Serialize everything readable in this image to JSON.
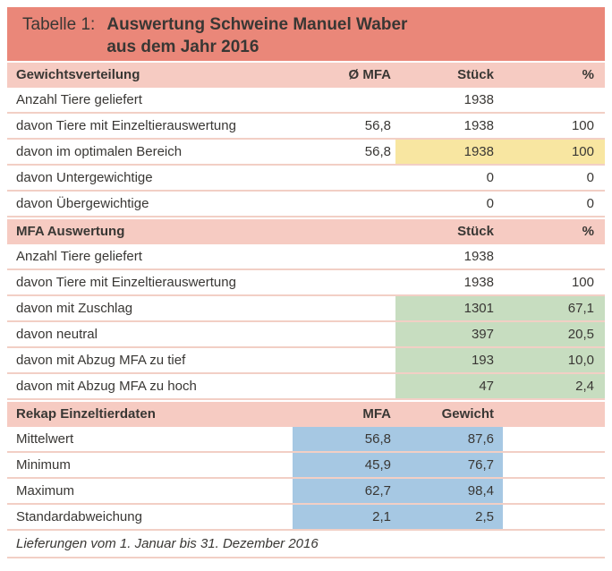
{
  "title": {
    "prefix": "Tabelle 1:",
    "line1": "Auswertung Schweine Manuel Waber",
    "line2": "aus dem Jahr 2016"
  },
  "sections": [
    {
      "header": {
        "label": "Gewichtsverteilung",
        "col2": "Ø MFA",
        "col3": "Stück",
        "col4": "%"
      },
      "rows": [
        {
          "label": "Anzahl Tiere geliefert",
          "col2": "",
          "col3": "1938",
          "col4": "",
          "highlight": "none"
        },
        {
          "label": "davon Tiere mit Einzeltierauswertung",
          "col2": "56,8",
          "col3": "1938",
          "col4": "100",
          "highlight": "none"
        },
        {
          "label": "davon im optimalen Bereich",
          "col2": "56,8",
          "col3": "1938",
          "col4": "100",
          "highlight": "yellow"
        },
        {
          "label": "davon Untergewichtige",
          "col2": "",
          "col3": "0",
          "col4": "0",
          "highlight": "none"
        },
        {
          "label": "davon Übergewichtige",
          "col2": "",
          "col3": "0",
          "col4": "0",
          "highlight": "none"
        }
      ]
    },
    {
      "header": {
        "label": "MFA Auswertung",
        "col2": "",
        "col3": "Stück",
        "col4": "%"
      },
      "rows": [
        {
          "label": "Anzahl Tiere geliefert",
          "col2": "",
          "col3": "1938",
          "col4": "",
          "highlight": "none"
        },
        {
          "label": "davon Tiere mit Einzeltierauswertung",
          "col2": "",
          "col3": "1938",
          "col4": "100",
          "highlight": "none"
        },
        {
          "label": "davon mit Zuschlag",
          "col2": "",
          "col3": "1301",
          "col4": "67,1",
          "highlight": "green"
        },
        {
          "label": "davon neutral",
          "col2": "",
          "col3": "397",
          "col4": "20,5",
          "highlight": "green"
        },
        {
          "label": "davon mit Abzug MFA zu tief",
          "col2": "",
          "col3": "193",
          "col4": "10,0",
          "highlight": "green"
        },
        {
          "label": "davon mit Abzug MFA zu hoch",
          "col2": "",
          "col3": "47",
          "col4": "2,4",
          "highlight": "green"
        }
      ]
    },
    {
      "header": {
        "label": "Rekap Einzeltierdaten",
        "col2": "MFA",
        "col3": "Gewicht",
        "col4": ""
      },
      "rows": [
        {
          "label": "Mittelwert",
          "col2": "56,8",
          "col3": "87,6",
          "col4": "",
          "highlight": "blue"
        },
        {
          "label": "Minimum",
          "col2": "45,9",
          "col3": "76,7",
          "col4": "",
          "highlight": "blue"
        },
        {
          "label": "Maximum",
          "col2": "62,7",
          "col3": "98,4",
          "col4": "",
          "highlight": "blue"
        },
        {
          "label": "Standardabweichung",
          "col2": "2,1",
          "col3": "2,5",
          "col4": "",
          "highlight": "blue"
        }
      ]
    }
  ],
  "footer": {
    "note": "Lieferungen vom 1. Januar bis 31. Dezember 2016"
  },
  "colors": {
    "accent": "#EA8779",
    "headerBg": "#F6CBC2",
    "line": "#F2CFC5",
    "yellow": "#F8E6A1",
    "green": "#C7DDC0",
    "blue": "#A6C8E3",
    "text": "#393734"
  }
}
